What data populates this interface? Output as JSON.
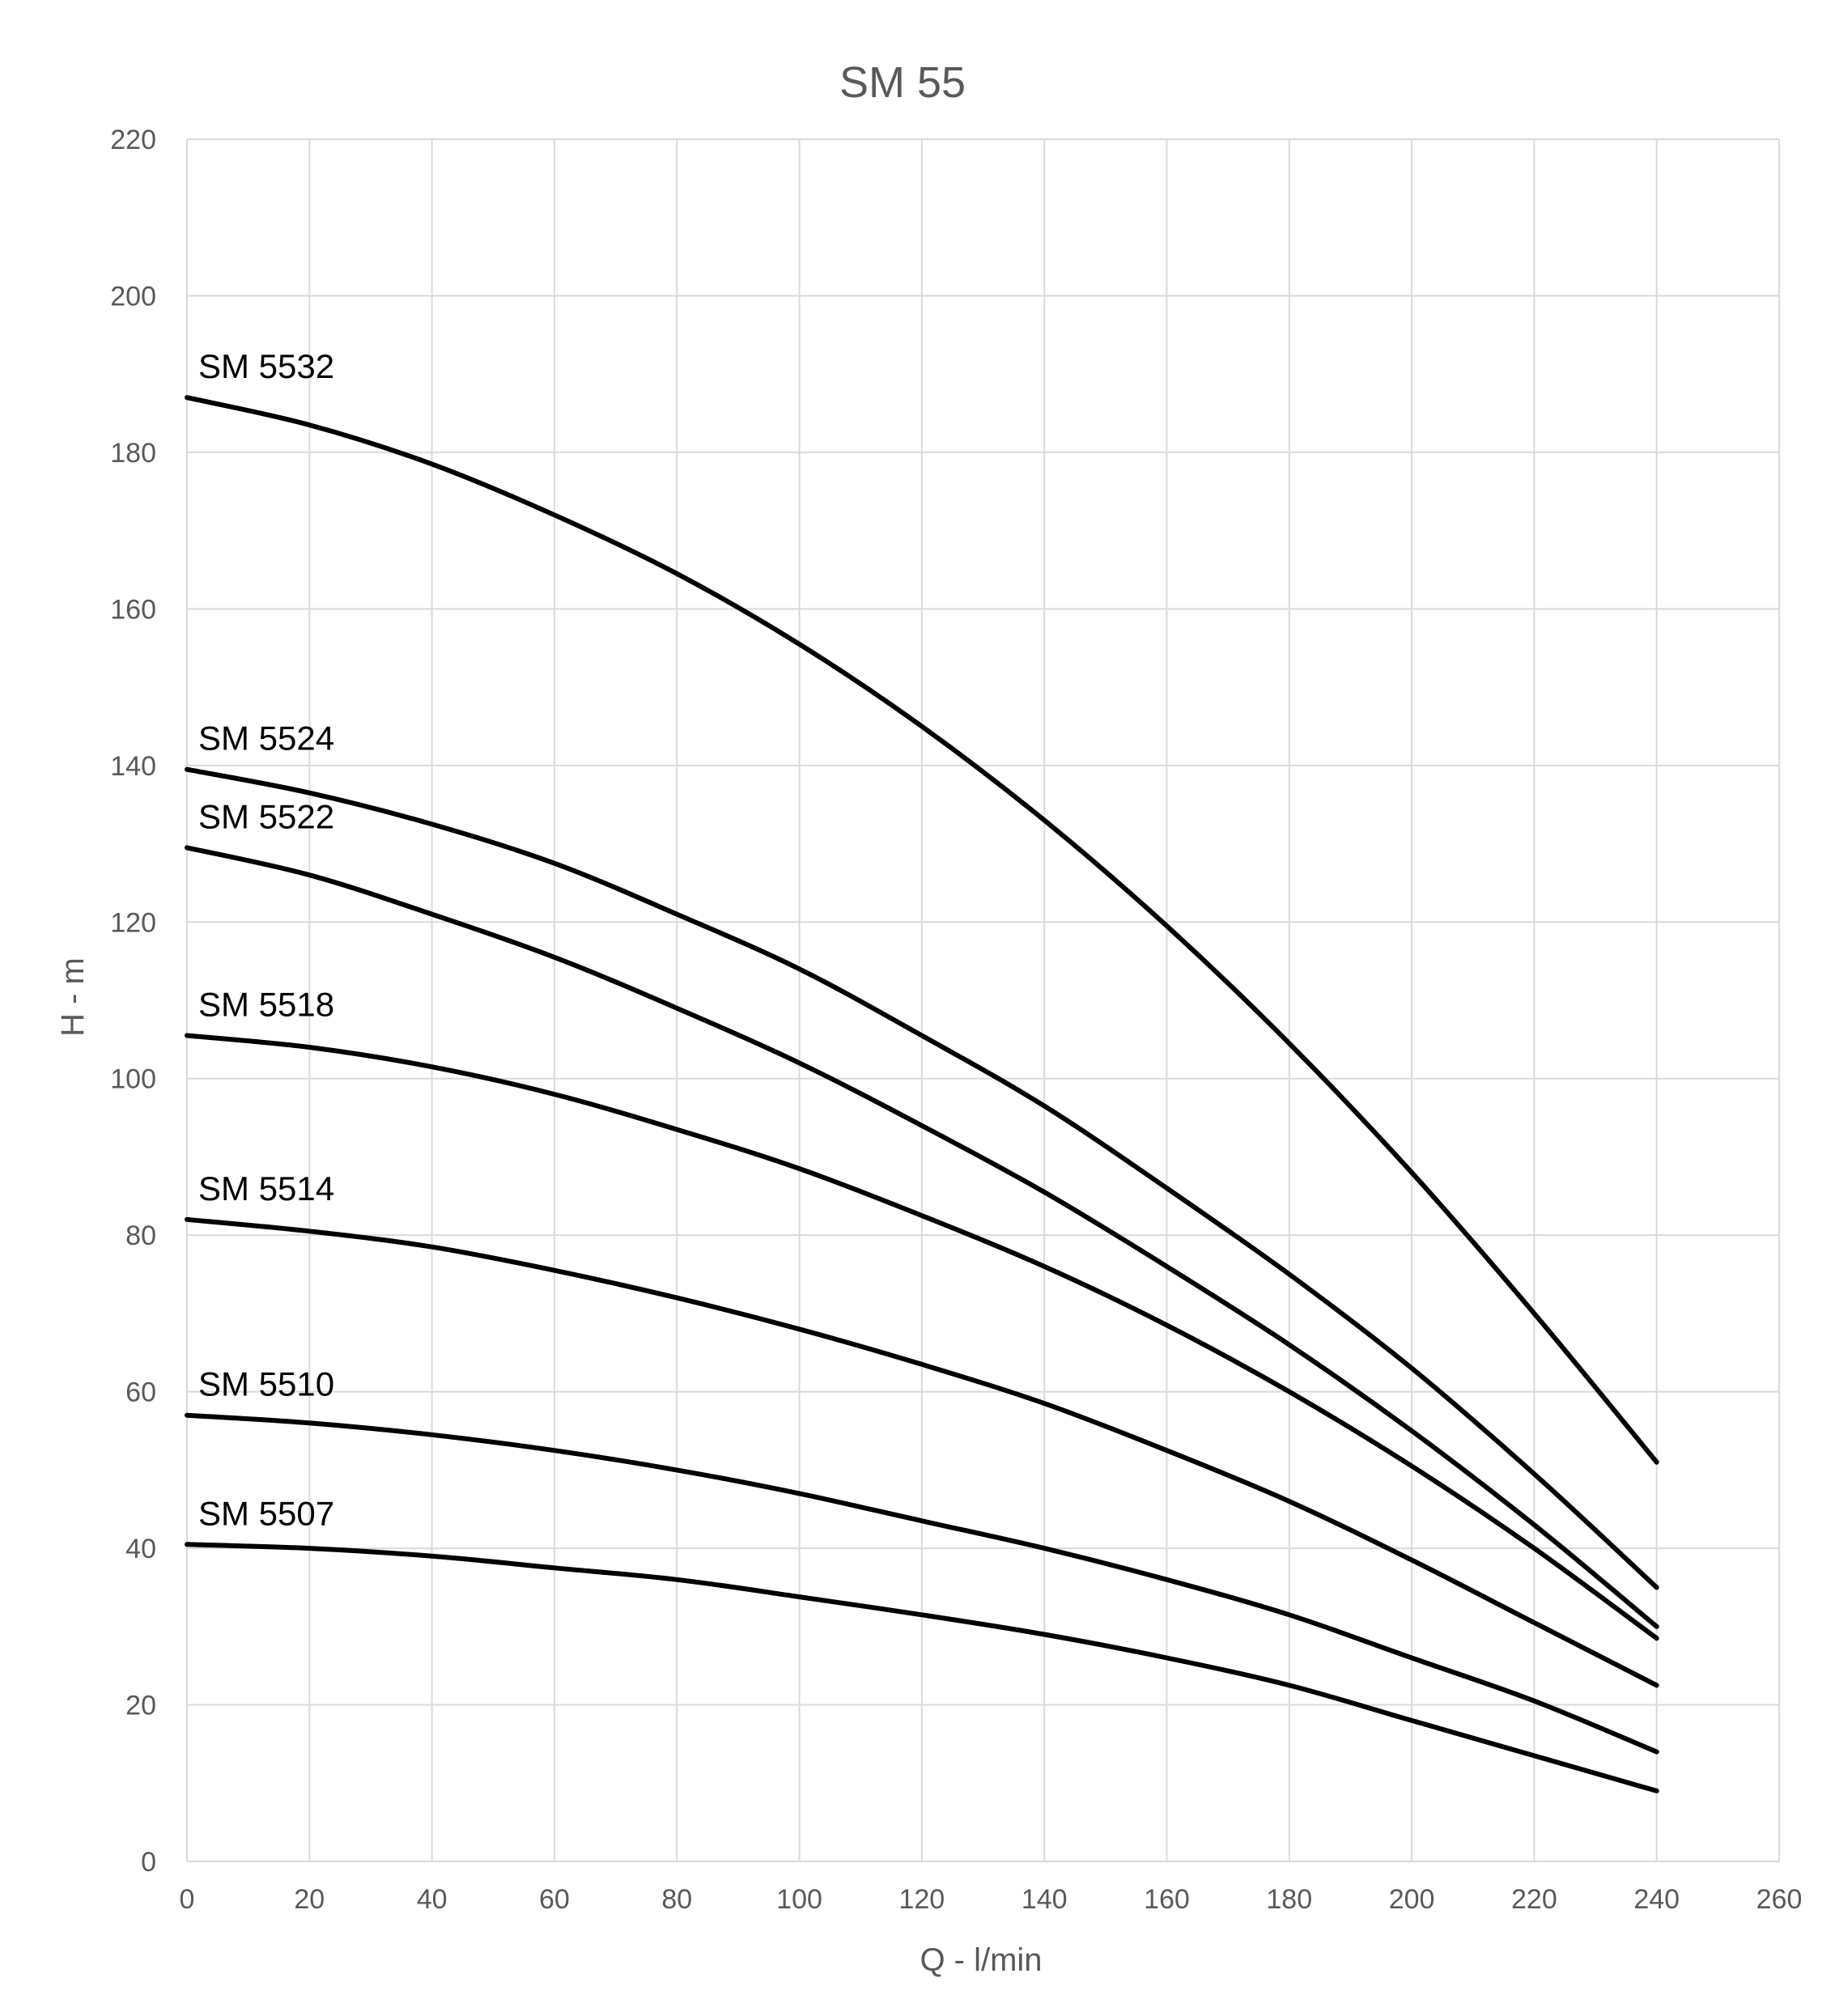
{
  "chart_data": {
    "type": "line",
    "title": "SM 55",
    "xlabel": "Q - l/min",
    "ylabel": "H - m",
    "xlim": [
      0,
      260
    ],
    "ylim": [
      0,
      220
    ],
    "xticks": [
      0,
      20,
      40,
      60,
      80,
      100,
      120,
      140,
      160,
      180,
      200,
      220,
      240,
      260
    ],
    "yticks": [
      0,
      20,
      40,
      60,
      80,
      100,
      120,
      140,
      160,
      180,
      200,
      220
    ],
    "grid": true,
    "legend": "none",
    "series_color": "#000000",
    "grid_color": "#d9d9d9",
    "text_color": "#595959",
    "x": [
      0,
      20,
      40,
      60,
      80,
      100,
      120,
      140,
      160,
      180,
      200,
      220,
      240
    ],
    "series": [
      {
        "name": "SM 5532",
        "values": [
          187,
          183.5,
          178.5,
          172,
          164.5,
          155.5,
          145,
          133,
          119.5,
          104.5,
          88,
          70,
          51
        ]
      },
      {
        "name": "SM 5524",
        "values": [
          139.5,
          136.5,
          132.5,
          127.5,
          121,
          114,
          105.5,
          96.5,
          86,
          75,
          63,
          49.5,
          35
        ]
      },
      {
        "name": "SM 5522",
        "values": [
          129.5,
          126,
          121,
          115.5,
          109,
          102,
          94,
          85.5,
          76,
          66,
          55,
          43,
          30
        ]
      },
      {
        "name": "SM 5518",
        "values": [
          105.5,
          104,
          101.5,
          98,
          93.5,
          88.5,
          82.5,
          76,
          68.5,
          60,
          50.5,
          40,
          28.5
        ]
      },
      {
        "name": "SM 5514",
        "values": [
          82,
          80.5,
          78.5,
          75.5,
          72,
          68,
          63.5,
          58.5,
          52.5,
          46,
          38.5,
          30.5,
          22.5
        ]
      },
      {
        "name": "SM 5510",
        "values": [
          57,
          56,
          54.5,
          52.5,
          50,
          47,
          43.5,
          40,
          36,
          31.5,
          26,
          20.5,
          14
        ]
      },
      {
        "name": "SM 5507",
        "values": [
          40.5,
          40,
          39,
          37.5,
          36,
          33.8,
          31.5,
          29,
          26,
          22.5,
          18,
          13.5,
          9
        ]
      }
    ]
  }
}
